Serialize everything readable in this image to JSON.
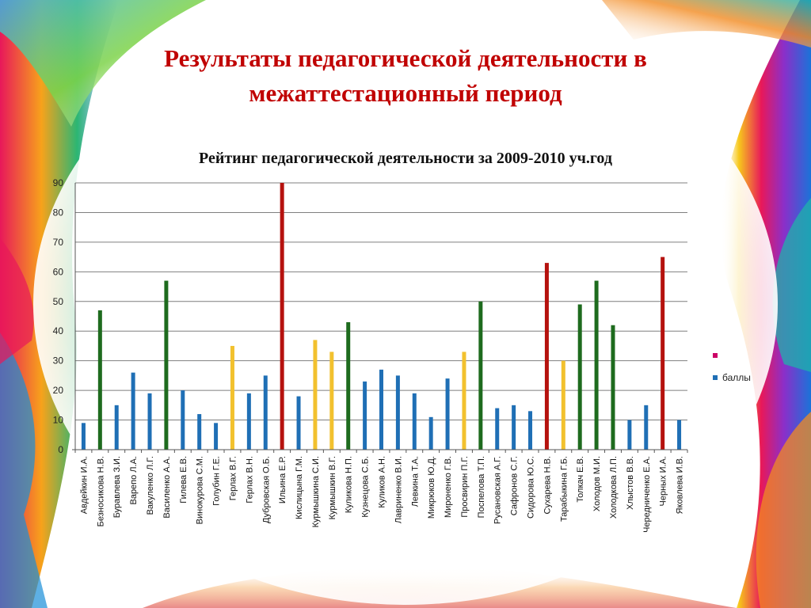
{
  "slide": {
    "title_line1": "Результаты педагогической деятельности в",
    "title_line2": "межаттестационный период"
  },
  "legend": {
    "entries": [
      {
        "label": "",
        "color": "#cc0066"
      },
      {
        "label": "баллы",
        "color": "#1f6fb5"
      }
    ]
  },
  "colors": {
    "blue": "#1f6fb5",
    "green": "#1e6b1e",
    "red": "#b5120e",
    "yellow": "#f2c12e",
    "title": "#c00000"
  },
  "chart_data": {
    "type": "bar",
    "title": "Рейтинг педагогической деятельности за 2009-2010 уч.год",
    "xlabel": "",
    "ylabel": "",
    "ylim": [
      0,
      90
    ],
    "yticks": [
      0,
      10,
      20,
      30,
      40,
      50,
      60,
      70,
      80,
      90
    ],
    "grid": true,
    "legend_position": "right",
    "series": [
      {
        "name": "баллы",
        "values": [
          9,
          47,
          15,
          26,
          19,
          57,
          20,
          12,
          9,
          35,
          19,
          25,
          90,
          18,
          37,
          33,
          43,
          23,
          27,
          25,
          19,
          11,
          24,
          33,
          50,
          14,
          15,
          13,
          63,
          30,
          49,
          57,
          42,
          10,
          15,
          65,
          10
        ]
      }
    ],
    "categories": [
      "Авдейкин И.А.",
      "Безносикова Н.В.",
      "Буравлева З.И.",
      "Варепо Л.А.",
      "Вакуленко Л.Г.",
      "Василенко А.А.",
      "Гилева Е.В.",
      "Винокурова С.М.",
      "Голубин Г.Е.",
      "Герлах В.Г.",
      "Герлах В.Н.",
      "Дубровская О.Б.",
      "Ильина Е.Р.",
      "Кислицына Г.М.",
      "Курмышкина С.И.",
      "Курмышкин В.Г.",
      "Куликова Н.П.",
      "Кузнецова С.Б.",
      "Куликов А.Н.",
      "Лавриненко В.И.",
      "Левкина Т.А.",
      "Микрюков Ю.Д.",
      "Мироненко Г.В.",
      "Просвирин П.Г.",
      "Поспелова Т.П.",
      "Русановская А.Г.",
      "Сафронов С.Г.",
      "Сидорова Ю.С.",
      "Сухарева Н.В.",
      "Тарабыкина Г.Б.",
      "Толкач Е.В.",
      "Холодов М.И.",
      "Холодкова Л.П.",
      "Хлыстов В.В.",
      "Чередниченко Е.А.",
      "Черных И.А.",
      "Яковлева И.В."
    ],
    "bar_colors": [
      "blue",
      "green",
      "blue",
      "blue",
      "blue",
      "green",
      "blue",
      "blue",
      "blue",
      "yellow",
      "blue",
      "blue",
      "red",
      "blue",
      "yellow",
      "yellow",
      "green",
      "blue",
      "blue",
      "blue",
      "blue",
      "blue",
      "blue",
      "yellow",
      "green",
      "blue",
      "blue",
      "blue",
      "red",
      "yellow",
      "green",
      "green",
      "green",
      "blue",
      "blue",
      "red",
      "blue"
    ]
  }
}
